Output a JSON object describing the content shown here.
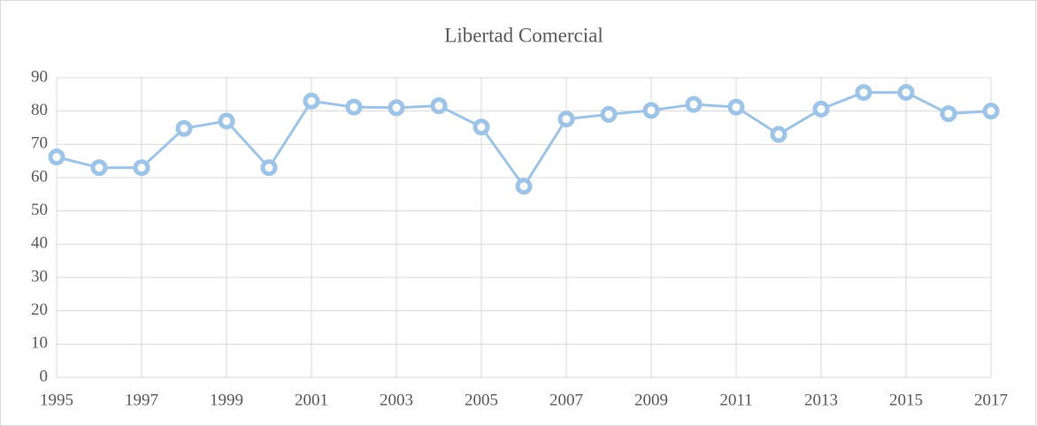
{
  "chart_data": {
    "type": "line",
    "title": "Libertad Comercial",
    "x": [
      1995,
      1996,
      1997,
      1998,
      1999,
      2000,
      2001,
      2002,
      2003,
      2004,
      2005,
      2006,
      2007,
      2008,
      2009,
      2010,
      2011,
      2012,
      2013,
      2014,
      2015,
      2016,
      2017
    ],
    "series": [
      {
        "name": "Libertad Comercial",
        "color": "#9dc3e6",
        "values": [
          66.2,
          63,
          63,
          74.8,
          77,
          63,
          83,
          81.2,
          81,
          81.6,
          75.2,
          57.4,
          77.6,
          79,
          80.2,
          82,
          81.2,
          73,
          80.6,
          85.6,
          85.6,
          79.2,
          80
        ]
      }
    ],
    "xlim": [
      1995,
      2017
    ],
    "xticks": [
      1995,
      1997,
      1999,
      2001,
      2003,
      2005,
      2007,
      2009,
      2011,
      2013,
      2015,
      2017
    ],
    "ylim": [
      0,
      90
    ],
    "yticks": [
      0,
      10,
      20,
      30,
      40,
      50,
      60,
      70,
      80,
      90
    ],
    "grid": true
  }
}
